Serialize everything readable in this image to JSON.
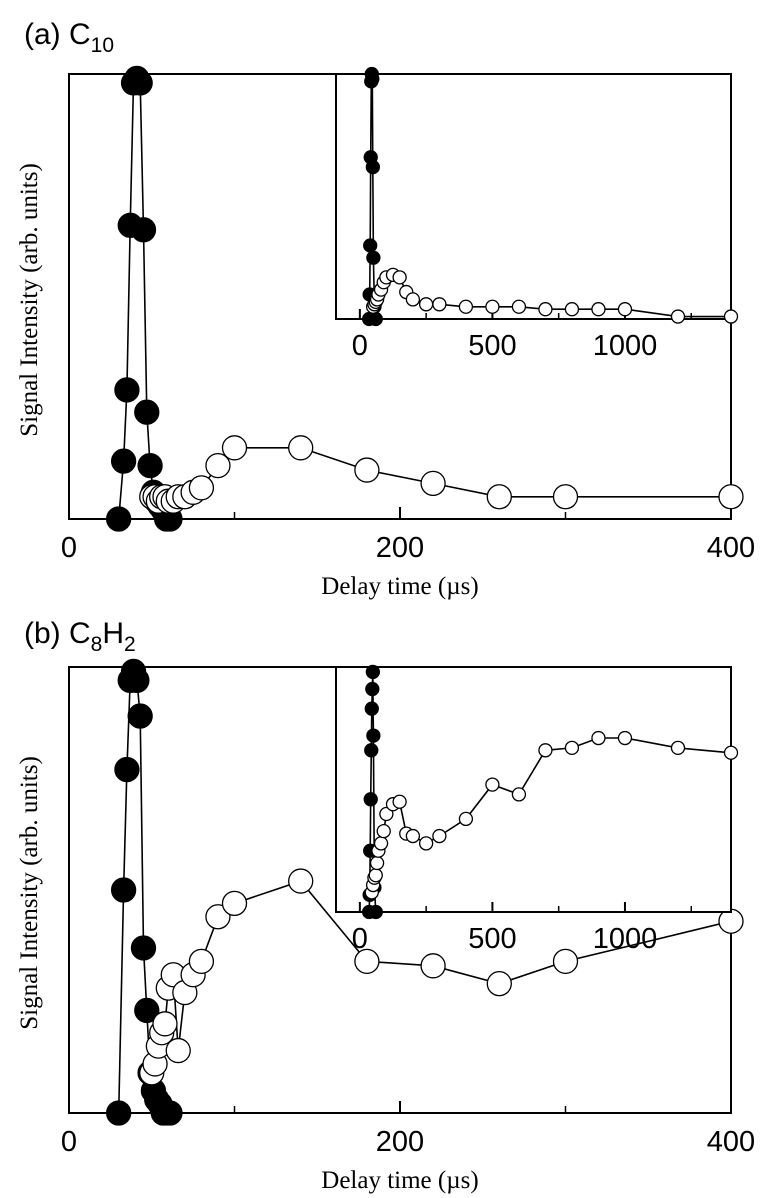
{
  "chart_data": [
    {
      "type": "scatter",
      "panel_label": "(a) C",
      "panel_label_subscripts": [
        "10"
      ],
      "xlabel": "Delay time (µs)",
      "ylabel": "Signal Intensity (arb. units)",
      "xlim": [
        0,
        400
      ],
      "ylim": [
        0,
        1
      ],
      "x_ticks": [
        0,
        200,
        400
      ],
      "series": [
        {
          "marker": "filled",
          "x": [
            30,
            33,
            35,
            37,
            39,
            41,
            43,
            45,
            47,
            49,
            51,
            53,
            55,
            57,
            59,
            61
          ],
          "y": [
            0.0,
            0.13,
            0.29,
            0.66,
            0.98,
            0.99,
            0.98,
            0.65,
            0.24,
            0.12,
            0.06,
            0.04,
            0.03,
            0.02,
            0.0,
            0.0
          ]
        },
        {
          "marker": "open",
          "x": [
            50,
            52,
            54,
            56,
            58,
            60,
            63,
            66,
            70,
            75,
            80,
            90,
            100,
            140,
            180,
            220,
            260,
            300,
            400
          ],
          "y": [
            0.05,
            0.05,
            0.04,
            0.05,
            0.05,
            0.04,
            0.04,
            0.05,
            0.05,
            0.06,
            0.07,
            0.12,
            0.16,
            0.16,
            0.11,
            0.08,
            0.05,
            0.05,
            0.05
          ]
        }
      ],
      "inset": {
        "xlim": [
          -90,
          1400
        ],
        "ylim": [
          0,
          1
        ],
        "x_ticks": [
          0,
          500,
          1000
        ],
        "series": [
          {
            "marker": "filled",
            "x": [
              35,
              37,
              39,
              41,
              43,
              45,
              47,
              49,
              51,
              55,
              60
            ],
            "y": [
              0.0,
              0.1,
              0.3,
              0.66,
              0.97,
              1.0,
              0.98,
              0.62,
              0.25,
              0.05,
              0.0
            ]
          },
          {
            "marker": "open",
            "x": [
              50,
              55,
              60,
              65,
              70,
              80,
              90,
              100,
              125,
              150,
              175,
              200,
              250,
              300,
              400,
              500,
              600,
              700,
              800,
              900,
              1000,
              1200,
              1400
            ],
            "y": [
              0.05,
              0.06,
              0.07,
              0.08,
              0.1,
              0.12,
              0.15,
              0.17,
              0.18,
              0.17,
              0.11,
              0.08,
              0.06,
              0.06,
              0.05,
              0.05,
              0.05,
              0.04,
              0.04,
              0.04,
              0.04,
              0.01,
              0.01
            ]
          }
        ]
      }
    },
    {
      "type": "scatter",
      "panel_label": "(b) C",
      "panel_label_subscripts": [
        "8",
        "2"
      ],
      "panel_label_middle": "H",
      "xlabel": "Delay time (µs)",
      "ylabel": "Signal Intensity (arb. units)",
      "xlim": [
        0,
        400
      ],
      "ylim": [
        0,
        1
      ],
      "x_ticks": [
        0,
        200,
        400
      ],
      "series": [
        {
          "marker": "filled",
          "x": [
            30,
            33,
            35,
            37,
            39,
            41,
            43,
            45,
            47,
            49,
            51,
            53,
            55,
            57,
            59,
            61
          ],
          "y": [
            0.0,
            0.5,
            0.77,
            0.97,
            0.99,
            0.97,
            0.89,
            0.37,
            0.23,
            0.09,
            0.05,
            0.03,
            0.02,
            0.0,
            0.0,
            0.0
          ]
        },
        {
          "marker": "open",
          "x": [
            50,
            52,
            54,
            56,
            58,
            60,
            63,
            66,
            70,
            75,
            80,
            90,
            100,
            140,
            180,
            220,
            260,
            300,
            400
          ],
          "y": [
            0.09,
            0.11,
            0.15,
            0.18,
            0.2,
            0.28,
            0.31,
            0.14,
            0.27,
            0.31,
            0.34,
            0.44,
            0.47,
            0.52,
            0.34,
            0.33,
            0.29,
            0.34,
            0.43
          ]
        }
      ],
      "inset": {
        "xlim": [
          -90,
          1400
        ],
        "ylim": [
          0,
          1
        ],
        "x_ticks": [
          0,
          500,
          1000
        ],
        "series": [
          {
            "marker": "filled",
            "x": [
              35,
              37,
              39,
              41,
              43,
              45,
              47,
              49,
              51,
              55,
              60
            ],
            "y": [
              0.0,
              0.07,
              0.25,
              0.46,
              0.66,
              0.83,
              0.91,
              0.98,
              0.72,
              0.1,
              0.0
            ]
          },
          {
            "marker": "open",
            "x": [
              45,
              50,
              55,
              60,
              65,
              70,
              80,
              90,
              100,
              125,
              150,
              175,
              200,
              250,
              300,
              400,
              500,
              600,
              700,
              800,
              900,
              1000,
              1200,
              1400
            ],
            "y": [
              0.08,
              0.11,
              0.14,
              0.15,
              0.2,
              0.25,
              0.28,
              0.33,
              0.4,
              0.44,
              0.45,
              0.32,
              0.31,
              0.28,
              0.31,
              0.38,
              0.52,
              0.48,
              0.66,
              0.67,
              0.71,
              0.71,
              0.67,
              0.65
            ]
          }
        ]
      }
    }
  ]
}
